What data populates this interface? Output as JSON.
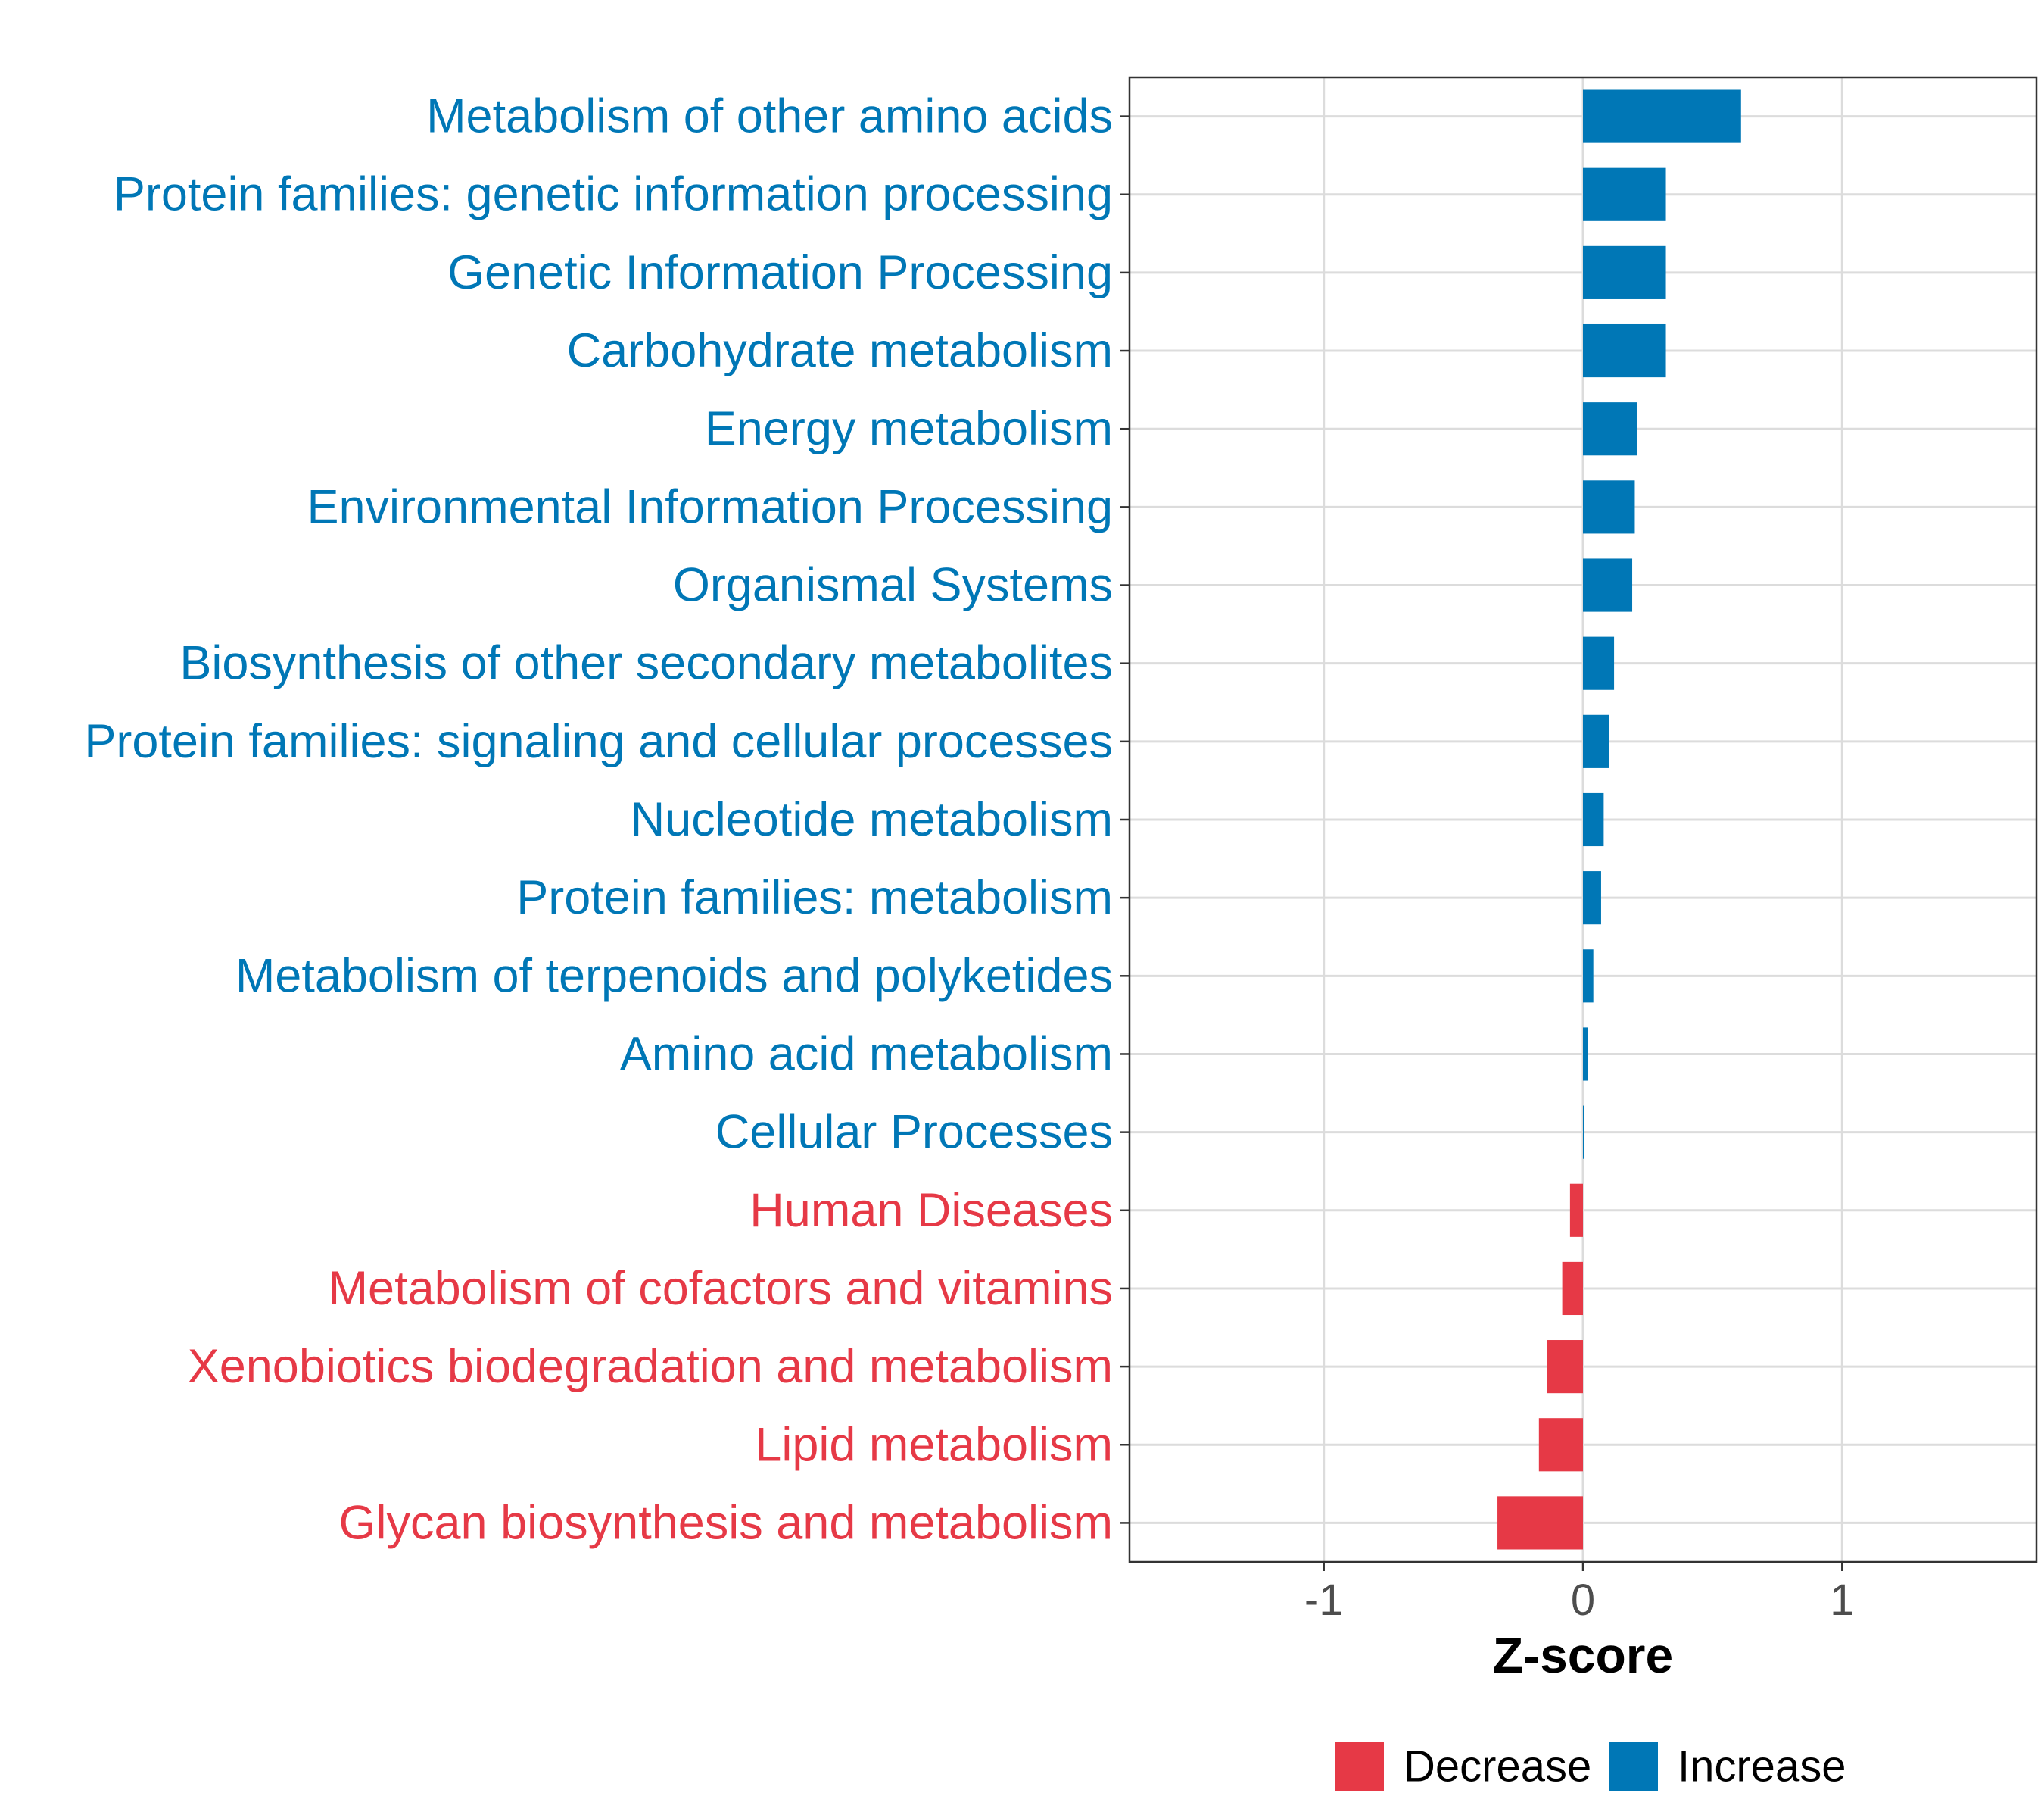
{
  "colors": {
    "increase": "#0077b6",
    "decrease": "#e63946",
    "grid": "#dcdcdc",
    "frame": "#333333",
    "tick": "#4d4d4d"
  },
  "chart_data": {
    "type": "bar",
    "orientation": "horizontal",
    "title": "",
    "xlabel": "Z-score",
    "ylabel": "",
    "xlim": [
      -1.75,
      1.75
    ],
    "xticks": [
      -1,
      0,
      1
    ],
    "xtick_labels": [
      "-1",
      "0",
      "1"
    ],
    "grid": true,
    "legend_position": "bottom",
    "legend": [
      {
        "name": "Decrease",
        "color": "#e63946"
      },
      {
        "name": "Increase",
        "color": "#0077b6"
      }
    ],
    "categories": [
      "Metabolism of other amino acids",
      "Protein families: genetic information processing",
      "Genetic Information Processing",
      "Carbohydrate metabolism",
      "Energy metabolism",
      "Environmental Information Processing",
      "Organismal Systems",
      "Biosynthesis of other secondary metabolites",
      "Protein families: signaling and cellular processes",
      "Nucleotide metabolism",
      "Protein families: metabolism",
      "Metabolism of terpenoids and polyketides",
      "Amino acid metabolism",
      "Cellular Processes",
      "Human Diseases",
      "Metabolism of cofactors and vitamins",
      "Xenobiotics biodegradation and metabolism",
      "Lipid metabolism",
      "Glycan biosynthesis and metabolism"
    ],
    "values": [
      0.61,
      0.32,
      0.32,
      0.32,
      0.21,
      0.2,
      0.19,
      0.12,
      0.1,
      0.08,
      0.07,
      0.04,
      0.02,
      0.005,
      -0.05,
      -0.08,
      -0.14,
      -0.17,
      -0.33
    ],
    "groups": [
      "Increase",
      "Increase",
      "Increase",
      "Increase",
      "Increase",
      "Increase",
      "Increase",
      "Increase",
      "Increase",
      "Increase",
      "Increase",
      "Increase",
      "Increase",
      "Increase",
      "Decrease",
      "Decrease",
      "Decrease",
      "Decrease",
      "Decrease"
    ]
  }
}
